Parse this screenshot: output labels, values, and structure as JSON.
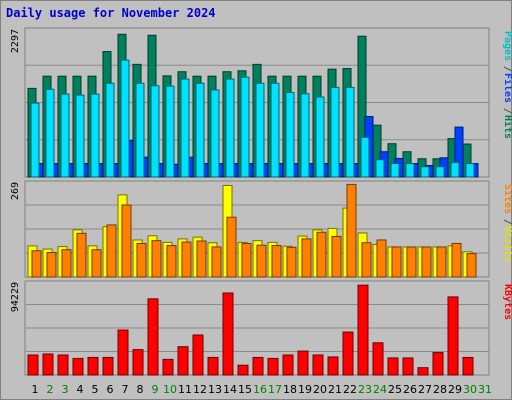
{
  "chart_data": {
    "type": "bar",
    "title": "Daily usage for November 2024",
    "days": [
      "1",
      "2",
      "3",
      "4",
      "5",
      "6",
      "7",
      "8",
      "9",
      "10",
      "11",
      "12",
      "13",
      "14",
      "15",
      "16",
      "17",
      "18",
      "19",
      "20",
      "21",
      "22",
      "23",
      "24",
      "25",
      "26",
      "27",
      "28",
      "29",
      "30",
      "31"
    ],
    "weekend_days": [
      "2",
      "3",
      "9",
      "10",
      "16",
      "17",
      "23",
      "24",
      "30",
      "31"
    ],
    "panels": [
      {
        "id": "hits-files-pages",
        "max_label": "2297",
        "ymax": 2297,
        "series": [
          {
            "name": "Hits",
            "color": "#00805c",
            "values": [
              1385,
              1575,
              1575,
              1575,
              1575,
              1960,
              2230,
              1760,
              2215,
              1580,
              1645,
              1575,
              1575,
              1645,
              1660,
              1760,
              1575,
              1575,
              1575,
              1575,
              1685,
              1695,
              2200,
              810,
              520,
              395,
              285,
              285,
              600,
              515,
              0
            ]
          },
          {
            "name": "Files",
            "color": "#0040ff",
            "values": [
              210,
              210,
              210,
              210,
              210,
              210,
              570,
              310,
              210,
              200,
              310,
              210,
              210,
              210,
              210,
              210,
              210,
              210,
              210,
              210,
              210,
              210,
              945,
              395,
              290,
              210,
              180,
              300,
              780,
              210,
              0
            ]
          },
          {
            "name": "Pages",
            "color": "#00e0ff",
            "values": [
              1155,
              1370,
              1295,
              1280,
              1295,
              1465,
              1825,
              1465,
              1425,
              1420,
              1530,
              1465,
              1360,
              1530,
              1560,
              1465,
              1465,
              1320,
              1300,
              1250,
              1400,
              1400,
              620,
              270,
              210,
              210,
              160,
              160,
              225,
              210,
              0
            ]
          }
        ],
        "labels": [
          {
            "text": "Pages",
            "color": "#00c0c0"
          },
          {
            "text": "/",
            "color": "#505050"
          },
          {
            "text": "Files",
            "color": "#0040ff"
          },
          {
            "text": "/",
            "color": "#505050"
          },
          {
            "text": "Hits",
            "color": "#00805c"
          }
        ]
      },
      {
        "id": "visits-sites",
        "max_label": "269",
        "ymax": 269,
        "series": [
          {
            "name": "Visits",
            "color": "#ffff00",
            "values": [
              89,
              80,
              87,
              135,
              89,
              144,
              235,
              106,
              118,
              99,
              109,
              114,
              98,
              262,
              99,
              104,
              99,
              88,
              117,
              135,
              139,
              197,
              126,
              93,
              86,
              86,
              86,
              86,
              89,
              72,
              0
            ]
          },
          {
            "name": "Sites",
            "color": "#ff8000",
            "values": [
              75,
              70,
              78,
              125,
              78,
              149,
              206,
              96,
              104,
              90,
              100,
              103,
              86,
              171,
              96,
              91,
              90,
              85,
              109,
              128,
              116,
              265,
              98,
              106,
              86,
              86,
              86,
              86,
              96,
              67,
              0
            ]
          }
        ],
        "labels": [
          {
            "text": "Sites",
            "color": "#ff8000"
          },
          {
            "text": "/",
            "color": "#505050"
          },
          {
            "text": "Visits",
            "color": "#e0e000"
          }
        ]
      },
      {
        "id": "kbytes",
        "max_label": "94229",
        "ymax": 94229,
        "series": [
          {
            "name": "KBytes",
            "color": "#ff0000",
            "values": [
              20500,
              21500,
              20500,
              17000,
              18000,
              18000,
              46000,
              26000,
              78000,
              16000,
              29000,
              41000,
              18000,
              84000,
              10000,
              18000,
              17000,
              20500,
              24500,
              20500,
              18500,
              44000,
              92000,
              33000,
              17500,
              17500,
              7500,
              23000,
              80000,
              18000,
              0
            ]
          }
        ],
        "labels": [
          {
            "text": "KBytes",
            "color": "#ff0000"
          }
        ]
      }
    ],
    "xlabel": "",
    "ylabel": "",
    "grid": true
  }
}
